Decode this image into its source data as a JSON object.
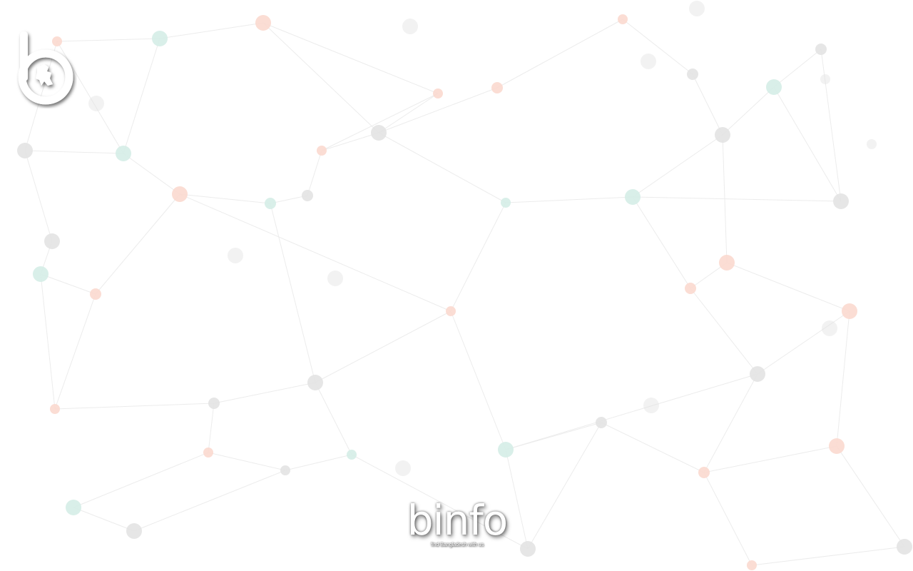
{
  "app": {
    "logo_letter": "b",
    "wordmark": "binfo",
    "tagline": "find Bangladesh with us"
  },
  "icons": {
    "top_logo": "b-bangladesh-map-logo-icon",
    "footer_logo": "binfo-logo-icon",
    "background": "network-nodes-background"
  },
  "colors": {
    "background": "#ffffff",
    "line": "#ececec",
    "node_gray": "#e3e3e3",
    "node_salmon": "#fbd9cf",
    "node_teal": "#d5ede7"
  }
}
